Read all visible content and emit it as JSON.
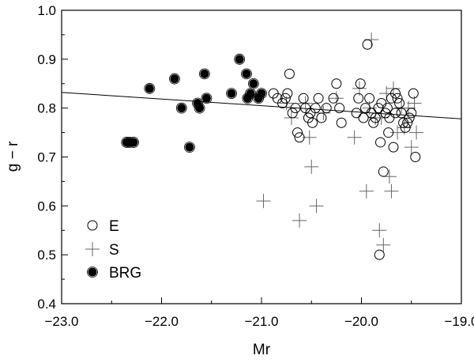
{
  "chart_data": {
    "type": "scatter",
    "title": "",
    "xlabel": "Mr",
    "ylabel": "g − r",
    "xlim": [
      -23.0,
      -19.0
    ],
    "ylim": [
      0.4,
      1.0
    ],
    "x_ticks": [
      "−23.0",
      "−22.0",
      "−21.0",
      "−20.0",
      "−19.0"
    ],
    "x_tick_values": [
      -23.0,
      -22.0,
      -21.0,
      -20.0,
      -19.0
    ],
    "y_ticks": [
      "0.4",
      "0.5",
      "0.6",
      "0.7",
      "0.8",
      "0.9",
      "1.0"
    ],
    "y_tick_values": [
      0.4,
      0.5,
      0.6,
      0.7,
      0.8,
      0.9,
      1.0
    ],
    "grid": false,
    "legend_position": "bottom-left",
    "fit_line": {
      "x": [
        -23.0,
        -19.0
      ],
      "y": [
        0.832,
        0.778
      ]
    },
    "series": [
      {
        "name": "E",
        "marker": "open-circle",
        "points": [
          [
            -20.88,
            0.83
          ],
          [
            -20.84,
            0.82
          ],
          [
            -20.79,
            0.81
          ],
          [
            -20.76,
            0.82
          ],
          [
            -20.74,
            0.83
          ],
          [
            -20.72,
            0.87
          ],
          [
            -20.69,
            0.79
          ],
          [
            -20.66,
            0.8
          ],
          [
            -20.64,
            0.75
          ],
          [
            -20.62,
            0.74
          ],
          [
            -20.58,
            0.82
          ],
          [
            -20.56,
            0.8
          ],
          [
            -20.53,
            0.78
          ],
          [
            -20.51,
            0.79
          ],
          [
            -20.49,
            0.77
          ],
          [
            -20.46,
            0.8
          ],
          [
            -20.43,
            0.82
          ],
          [
            -20.4,
            0.78
          ],
          [
            -20.35,
            0.8
          ],
          [
            -20.28,
            0.82
          ],
          [
            -20.25,
            0.85
          ],
          [
            -20.22,
            0.8
          ],
          [
            -20.2,
            0.77
          ],
          [
            -20.05,
            0.79
          ],
          [
            -20.03,
            0.82
          ],
          [
            -20.01,
            0.85
          ],
          [
            -19.98,
            0.78
          ],
          [
            -19.96,
            0.8
          ],
          [
            -19.94,
            0.93
          ],
          [
            -19.92,
            0.82
          ],
          [
            -19.9,
            0.79
          ],
          [
            -19.88,
            0.77
          ],
          [
            -19.86,
            0.78
          ],
          [
            -19.83,
            0.8
          ],
          [
            -19.81,
            0.73
          ],
          [
            -19.8,
            0.81
          ],
          [
            -19.78,
            0.67
          ],
          [
            -19.76,
            0.79
          ],
          [
            -19.74,
            0.8
          ],
          [
            -19.72,
            0.78
          ],
          [
            -19.7,
            0.82
          ],
          [
            -19.68,
            0.72
          ],
          [
            -19.66,
            0.79
          ],
          [
            -19.64,
            0.82
          ],
          [
            -19.62,
            0.81
          ],
          [
            -19.6,
            0.79
          ],
          [
            -19.58,
            0.77
          ],
          [
            -19.56,
            0.76
          ],
          [
            -19.54,
            0.77
          ],
          [
            -19.52,
            0.78
          ],
          [
            -19.5,
            0.79
          ],
          [
            -19.48,
            0.83
          ],
          [
            -19.46,
            0.7
          ],
          [
            -19.82,
            0.5
          ],
          [
            -19.66,
            0.83
          ],
          [
            -19.73,
            0.75
          ]
        ]
      },
      {
        "name": "S",
        "marker": "plus",
        "points": [
          [
            -20.98,
            0.61
          ],
          [
            -20.75,
            0.81
          ],
          [
            -20.7,
            0.78
          ],
          [
            -20.62,
            0.57
          ],
          [
            -20.56,
            0.81
          ],
          [
            -20.52,
            0.74
          ],
          [
            -20.5,
            0.68
          ],
          [
            -20.45,
            0.6
          ],
          [
            -20.38,
            0.79
          ],
          [
            -20.25,
            0.82
          ],
          [
            -20.07,
            0.74
          ],
          [
            -20.02,
            0.84
          ],
          [
            -19.95,
            0.63
          ],
          [
            -19.9,
            0.94
          ],
          [
            -19.86,
            0.78
          ],
          [
            -19.82,
            0.55
          ],
          [
            -19.78,
            0.52
          ],
          [
            -19.75,
            0.83
          ],
          [
            -19.72,
            0.66
          ],
          [
            -19.7,
            0.63
          ],
          [
            -19.68,
            0.84
          ],
          [
            -19.64,
            0.75
          ],
          [
            -19.6,
            0.8
          ],
          [
            -19.57,
            0.76
          ],
          [
            -19.53,
            0.8
          ],
          [
            -19.5,
            0.72
          ],
          [
            -19.47,
            0.81
          ],
          [
            -19.45,
            0.75
          ],
          [
            -19.8,
            0.78
          ],
          [
            -19.92,
            0.8
          ]
        ]
      },
      {
        "name": "BRG",
        "marker": "filled-circle",
        "points": [
          [
            -22.35,
            0.73
          ],
          [
            -22.32,
            0.73
          ],
          [
            -22.28,
            0.73
          ],
          [
            -22.12,
            0.84
          ],
          [
            -21.87,
            0.86
          ],
          [
            -21.8,
            0.8
          ],
          [
            -21.72,
            0.72
          ],
          [
            -21.64,
            0.81
          ],
          [
            -21.62,
            0.8
          ],
          [
            -21.57,
            0.87
          ],
          [
            -21.55,
            0.82
          ],
          [
            -21.3,
            0.83
          ],
          [
            -21.22,
            0.9
          ],
          [
            -21.15,
            0.87
          ],
          [
            -21.14,
            0.82
          ],
          [
            -21.08,
            0.85
          ],
          [
            -21.03,
            0.82
          ],
          [
            -21.0,
            0.83
          ],
          [
            -21.11,
            0.83
          ]
        ]
      }
    ]
  }
}
